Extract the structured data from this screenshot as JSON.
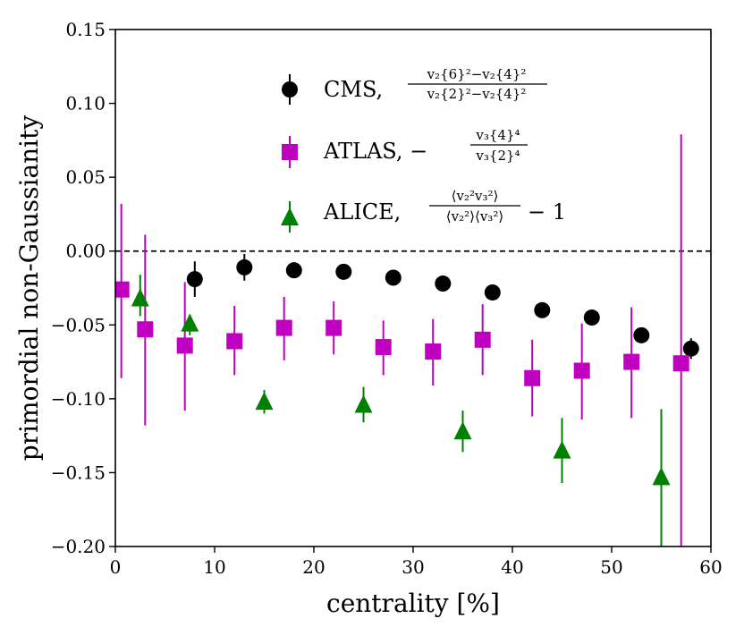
{
  "chart_data": {
    "type": "scatter",
    "xlabel": "centrality [%]",
    "ylabel": "primordial non-Gaussianity",
    "xlim": [
      0,
      60
    ],
    "ylim": [
      -0.2,
      0.15
    ],
    "xticks": [
      0,
      10,
      20,
      30,
      40,
      50,
      60
    ],
    "xtick_labels": [
      "0",
      "10",
      "20",
      "30",
      "40",
      "50",
      "60"
    ],
    "yticks": [
      -0.2,
      -0.15,
      -0.1,
      -0.05,
      0.0,
      0.05,
      0.1,
      0.15
    ],
    "ytick_labels": [
      "−0.20",
      "−0.15",
      "−0.10",
      "−0.05",
      "0.00",
      "0.05",
      "0.10",
      "0.15"
    ],
    "reference_line": {
      "y": 0.0,
      "style": "dashed"
    },
    "legend_position": "top-center",
    "series": [
      {
        "name": "CMS",
        "legend_prefix": "CMS,",
        "formula": {
          "numerator": "v₂{6}²−v₂{4}²",
          "denominator": "v₂{2}²−v₂{4}²"
        },
        "marker": "circle",
        "color": "#000000",
        "x": [
          8,
          13,
          18,
          23,
          28,
          33,
          38,
          43,
          48,
          53,
          58
        ],
        "y": [
          -0.019,
          -0.011,
          -0.013,
          -0.014,
          -0.018,
          -0.022,
          -0.028,
          -0.04,
          -0.045,
          -0.057,
          -0.066
        ],
        "yerr": [
          0.012,
          0.009,
          0.004,
          0.003,
          0.003,
          0.003,
          0.003,
          0.003,
          0.003,
          0.003,
          0.007
        ]
      },
      {
        "name": "ATLAS",
        "legend_prefix": "ATLAS, −",
        "formula": {
          "numerator": "v₃{4}⁴",
          "denominator": "v₃{2}⁴"
        },
        "marker": "square",
        "color": "#c000c0",
        "x": [
          0.6,
          3,
          7,
          12,
          17,
          22,
          27,
          32,
          37,
          42,
          47,
          52,
          57
        ],
        "y": [
          -0.026,
          -0.053,
          -0.064,
          -0.061,
          -0.052,
          -0.052,
          -0.065,
          -0.068,
          -0.06,
          -0.086,
          -0.081,
          -0.075,
          -0.076
        ],
        "yerr_low": [
          0.06,
          0.065,
          0.044,
          0.023,
          0.022,
          0.018,
          0.019,
          0.023,
          0.024,
          0.026,
          0.033,
          0.038,
          0.124
        ],
        "yerr_high": [
          0.058,
          0.064,
          0.043,
          0.024,
          0.021,
          0.018,
          0.018,
          0.022,
          0.024,
          0.026,
          0.032,
          0.037,
          0.155
        ]
      },
      {
        "name": "ALICE",
        "legend_prefix": "ALICE,",
        "formula": {
          "numerator": "⟨v₂²v₃²⟩",
          "denominator": "⟨v₂²⟩⟨v₃²⟩",
          "suffix": "− 1"
        },
        "marker": "triangle",
        "color": "#008000",
        "x": [
          2.5,
          7.5,
          15,
          25,
          35,
          45,
          55
        ],
        "y": [
          -0.032,
          -0.049,
          -0.102,
          -0.104,
          -0.122,
          -0.135,
          -0.153
        ],
        "yerr_low": [
          0.012,
          0.008,
          0.008,
          0.012,
          0.014,
          0.022,
          0.06
        ],
        "yerr_high": [
          0.016,
          0.006,
          0.008,
          0.012,
          0.014,
          0.022,
          0.046
        ]
      }
    ]
  }
}
